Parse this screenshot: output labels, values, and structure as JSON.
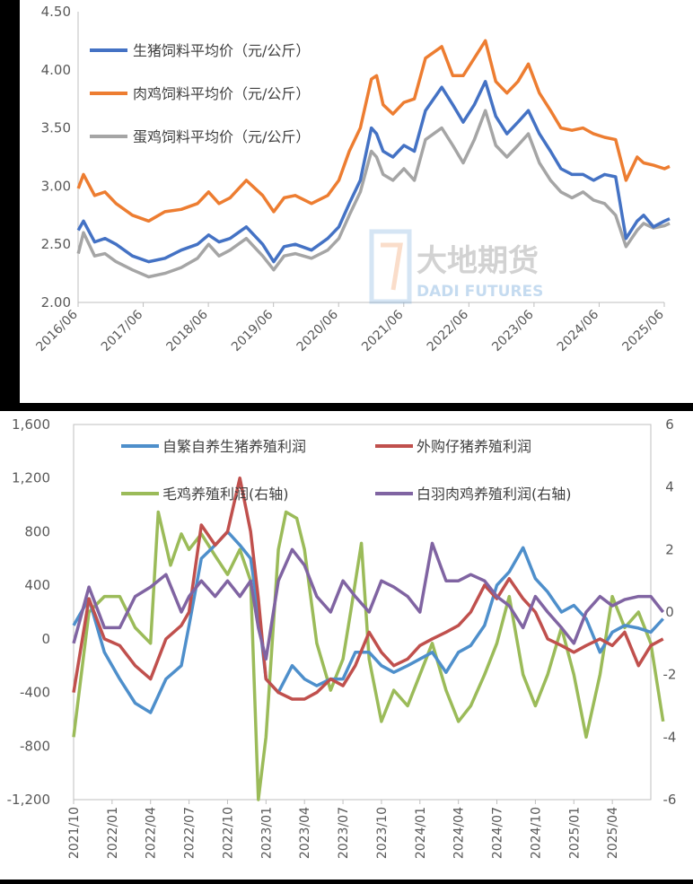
{
  "chart_data": [
    {
      "type": "line",
      "title": "",
      "xlabel": "",
      "ylabel": "",
      "ylim": [
        2.0,
        4.5
      ],
      "yticks": [
        "2.00",
        "2.50",
        "3.00",
        "3.50",
        "4.00",
        "4.50"
      ],
      "x_ticks": [
        "2016/06",
        "2017/06",
        "2018/06",
        "2019/06",
        "2020/06",
        "2021/06",
        "2022/06",
        "2023/06",
        "2024/06",
        "2025/06"
      ],
      "x_range": [
        "2016/06",
        "2025/06"
      ],
      "grid": false,
      "legend_position": "top-left",
      "watermark": {
        "cn": "大地期货",
        "en": "DADI FUTURES"
      },
      "series": [
        {
          "name": "生猪饲料平均价（元/公斤）",
          "color": "#4472C4",
          "x": [
            2016.42,
            2016.5,
            2016.67,
            2016.83,
            2017.0,
            2017.25,
            2017.5,
            2017.75,
            2018.0,
            2018.25,
            2018.42,
            2018.58,
            2018.75,
            2019.0,
            2019.25,
            2019.42,
            2019.58,
            2019.75,
            2020.0,
            2020.25,
            2020.42,
            2020.58,
            2020.75,
            2020.92,
            2021.0,
            2021.1,
            2021.25,
            2021.42,
            2021.58,
            2021.75,
            2022.0,
            2022.17,
            2022.33,
            2022.5,
            2022.67,
            2022.83,
            2023.0,
            2023.17,
            2023.33,
            2023.5,
            2023.67,
            2023.83,
            2024.0,
            2024.17,
            2024.33,
            2024.5,
            2024.67,
            2024.83,
            2025.0,
            2025.1,
            2025.25,
            2025.42,
            2025.5
          ],
          "values": [
            2.62,
            2.7,
            2.52,
            2.55,
            2.5,
            2.4,
            2.35,
            2.38,
            2.45,
            2.5,
            2.58,
            2.52,
            2.55,
            2.65,
            2.5,
            2.35,
            2.48,
            2.5,
            2.45,
            2.55,
            2.65,
            2.85,
            3.05,
            3.5,
            3.45,
            3.3,
            3.25,
            3.35,
            3.3,
            3.65,
            3.85,
            3.7,
            3.55,
            3.7,
            3.9,
            3.6,
            3.45,
            3.55,
            3.65,
            3.45,
            3.3,
            3.15,
            3.1,
            3.1,
            3.05,
            3.1,
            3.08,
            2.55,
            2.7,
            2.75,
            2.65,
            2.7,
            2.72
          ]
        },
        {
          "name": "肉鸡饲料平均价（元/公斤）",
          "color": "#ED7D31",
          "x": [
            2016.42,
            2016.5,
            2016.67,
            2016.83,
            2017.0,
            2017.25,
            2017.5,
            2017.75,
            2018.0,
            2018.25,
            2018.42,
            2018.58,
            2018.75,
            2019.0,
            2019.25,
            2019.42,
            2019.58,
            2019.75,
            2020.0,
            2020.25,
            2020.42,
            2020.58,
            2020.75,
            2020.92,
            2021.0,
            2021.1,
            2021.25,
            2021.42,
            2021.58,
            2021.75,
            2022.0,
            2022.17,
            2022.33,
            2022.5,
            2022.67,
            2022.83,
            2023.0,
            2023.17,
            2023.33,
            2023.5,
            2023.67,
            2023.83,
            2024.0,
            2024.17,
            2024.33,
            2024.5,
            2024.67,
            2024.83,
            2025.0,
            2025.1,
            2025.25,
            2025.42,
            2025.5
          ],
          "values": [
            2.98,
            3.1,
            2.92,
            2.95,
            2.85,
            2.75,
            2.7,
            2.78,
            2.8,
            2.85,
            2.95,
            2.85,
            2.9,
            3.05,
            2.92,
            2.78,
            2.9,
            2.92,
            2.85,
            2.92,
            3.05,
            3.3,
            3.5,
            3.92,
            3.95,
            3.7,
            3.62,
            3.72,
            3.75,
            4.1,
            4.2,
            3.95,
            3.95,
            4.1,
            4.25,
            3.9,
            3.8,
            3.9,
            4.05,
            3.8,
            3.65,
            3.5,
            3.48,
            3.5,
            3.45,
            3.42,
            3.4,
            3.05,
            3.25,
            3.2,
            3.18,
            3.15,
            3.17
          ]
        },
        {
          "name": "蛋鸡饲料平均价（元/公斤）",
          "color": "#A5A5A5",
          "x": [
            2016.42,
            2016.5,
            2016.67,
            2016.83,
            2017.0,
            2017.25,
            2017.5,
            2017.75,
            2018.0,
            2018.25,
            2018.42,
            2018.58,
            2018.75,
            2019.0,
            2019.25,
            2019.42,
            2019.58,
            2019.75,
            2020.0,
            2020.25,
            2020.42,
            2020.58,
            2020.75,
            2020.92,
            2021.0,
            2021.1,
            2021.25,
            2021.42,
            2021.58,
            2021.75,
            2022.0,
            2022.17,
            2022.33,
            2022.5,
            2022.67,
            2022.83,
            2023.0,
            2023.17,
            2023.33,
            2023.5,
            2023.67,
            2023.83,
            2024.0,
            2024.17,
            2024.33,
            2024.5,
            2024.67,
            2024.83,
            2025.0,
            2025.1,
            2025.25,
            2025.42,
            2025.5
          ],
          "values": [
            2.42,
            2.6,
            2.4,
            2.42,
            2.35,
            2.28,
            2.22,
            2.25,
            2.3,
            2.38,
            2.5,
            2.4,
            2.45,
            2.55,
            2.4,
            2.28,
            2.4,
            2.42,
            2.38,
            2.45,
            2.55,
            2.75,
            2.95,
            3.3,
            3.25,
            3.1,
            3.05,
            3.15,
            3.05,
            3.4,
            3.5,
            3.35,
            3.2,
            3.4,
            3.65,
            3.35,
            3.25,
            3.35,
            3.45,
            3.2,
            3.05,
            2.95,
            2.9,
            2.95,
            2.88,
            2.85,
            2.75,
            2.48,
            2.62,
            2.68,
            2.64,
            2.66,
            2.68
          ]
        }
      ]
    },
    {
      "type": "line",
      "title": "",
      "xlabel": "",
      "ylabel": "",
      "ylim": [
        -1200,
        1600
      ],
      "yticks": [
        "-1,200",
        "-800",
        "-400",
        "0",
        "400",
        "800",
        "1,200",
        "1,600"
      ],
      "y2lim": [
        -6,
        6
      ],
      "y2ticks": [
        "-6",
        "-4",
        "-2",
        "0",
        "2",
        "4",
        "6"
      ],
      "x_ticks": [
        "2021/10",
        "2022/01",
        "2022/04",
        "2022/07",
        "2022/10",
        "2023/01",
        "2023/04",
        "2023/07",
        "2023/10",
        "2024/01",
        "2024/04",
        "2024/07",
        "2024/10",
        "2025/01",
        "2025/04"
      ],
      "x_range": [
        "2021/10",
        "2025/07"
      ],
      "grid": false,
      "legend_position": "top",
      "series": [
        {
          "name": "自繁自养生猪养殖利润",
          "axis": "left",
          "color": "#4E8FCB",
          "x": [
            2021.75,
            2021.85,
            2021.95,
            2022.05,
            2022.15,
            2022.25,
            2022.35,
            2022.45,
            2022.5,
            2022.58,
            2022.67,
            2022.75,
            2022.83,
            2022.9,
            2022.95,
            2023.0,
            2023.08,
            2023.17,
            2023.25,
            2023.33,
            2023.42,
            2023.5,
            2023.58,
            2023.67,
            2023.75,
            2023.83,
            2023.92,
            2024.0,
            2024.08,
            2024.17,
            2024.25,
            2024.33,
            2024.42,
            2024.5,
            2024.58,
            2024.67,
            2024.75,
            2024.83,
            2024.92,
            2025.0,
            2025.08,
            2025.17,
            2025.25,
            2025.33,
            2025.42,
            2025.5,
            2025.58
          ],
          "values": [
            100,
            300,
            -100,
            -300,
            -480,
            -550,
            -300,
            -200,
            100,
            600,
            700,
            800,
            700,
            600,
            200,
            -300,
            -400,
            -200,
            -300,
            -350,
            -300,
            -300,
            -100,
            -100,
            -200,
            -250,
            -200,
            -150,
            -100,
            -250,
            -100,
            -50,
            100,
            400,
            500,
            680,
            450,
            350,
            200,
            250,
            150,
            -100,
            50,
            100,
            80,
            50,
            150
          ]
        },
        {
          "name": "外购仔猪养殖利润",
          "axis": "left",
          "color": "#C0504D",
          "x": [
            2021.75,
            2021.85,
            2021.95,
            2022.05,
            2022.15,
            2022.25,
            2022.35,
            2022.45,
            2022.5,
            2022.58,
            2022.67,
            2022.75,
            2022.83,
            2022.9,
            2022.95,
            2023.0,
            2023.08,
            2023.17,
            2023.25,
            2023.33,
            2023.42,
            2023.5,
            2023.58,
            2023.67,
            2023.75,
            2023.83,
            2023.92,
            2024.0,
            2024.08,
            2024.17,
            2024.25,
            2024.33,
            2024.42,
            2024.5,
            2024.58,
            2024.67,
            2024.75,
            2024.83,
            2024.92,
            2025.0,
            2025.08,
            2025.17,
            2025.25,
            2025.33,
            2025.42,
            2025.5,
            2025.58
          ],
          "values": [
            -400,
            300,
            0,
            -50,
            -200,
            -300,
            0,
            100,
            200,
            850,
            700,
            800,
            1200,
            800,
            300,
            -300,
            -400,
            -450,
            -450,
            -400,
            -300,
            -350,
            -200,
            50,
            -100,
            -200,
            -150,
            -50,
            0,
            50,
            100,
            200,
            400,
            300,
            450,
            300,
            200,
            0,
            -50,
            -100,
            -50,
            0,
            -50,
            50,
            -200,
            -50,
            0
          ]
        },
        {
          "name": "毛鸡养殖利润(右轴)",
          "axis": "right",
          "color": "#9BBB59",
          "x": [
            2021.75,
            2021.85,
            2021.95,
            2022.05,
            2022.15,
            2022.25,
            2022.3,
            2022.38,
            2022.45,
            2022.5,
            2022.58,
            2022.67,
            2022.75,
            2022.83,
            2022.9,
            2022.95,
            2023.0,
            2023.08,
            2023.13,
            2023.2,
            2023.25,
            2023.33,
            2023.42,
            2023.5,
            2023.55,
            2023.62,
            2023.67,
            2023.75,
            2023.83,
            2023.92,
            2024.0,
            2024.08,
            2024.17,
            2024.25,
            2024.33,
            2024.42,
            2024.5,
            2024.58,
            2024.67,
            2024.75,
            2024.83,
            2024.92,
            2025.0,
            2025.08,
            2025.17,
            2025.25,
            2025.33,
            2025.42,
            2025.5,
            2025.58
          ],
          "values": [
            -4,
            0,
            0.5,
            0.5,
            -0.5,
            -1,
            3.2,
            1.5,
            2.5,
            2,
            2.5,
            1.8,
            1.2,
            2,
            1,
            -6,
            -4,
            2,
            3.2,
            3,
            2,
            -1,
            -2.5,
            -1.5,
            0,
            2.2,
            -1.5,
            -3.5,
            -2.5,
            -3,
            -2,
            -1,
            -2.5,
            -3.5,
            -3,
            -2,
            -1,
            0.5,
            -2,
            -3,
            -2,
            -0.5,
            -2,
            -4,
            -2,
            0.5,
            -0.5,
            0,
            -1,
            -3.5
          ]
        },
        {
          "name": "白羽肉鸡养殖利润(右轴)",
          "axis": "right",
          "color": "#8064A2",
          "x": [
            2021.75,
            2021.85,
            2021.95,
            2022.05,
            2022.15,
            2022.25,
            2022.35,
            2022.45,
            2022.5,
            2022.58,
            2022.67,
            2022.75,
            2022.83,
            2022.9,
            2022.95,
            2023.0,
            2023.08,
            2023.17,
            2023.25,
            2023.33,
            2023.42,
            2023.5,
            2023.58,
            2023.67,
            2023.75,
            2023.83,
            2023.92,
            2024.0,
            2024.08,
            2024.17,
            2024.25,
            2024.33,
            2024.42,
            2024.5,
            2024.58,
            2024.67,
            2024.75,
            2024.83,
            2024.92,
            2025.0,
            2025.08,
            2025.17,
            2025.25,
            2025.33,
            2025.42,
            2025.5,
            2025.58
          ],
          "values": [
            -1,
            0.8,
            -0.5,
            -0.5,
            0.5,
            0.8,
            1.2,
            0,
            0.5,
            1,
            0.5,
            1,
            0.5,
            1,
            -0.5,
            -1.5,
            1,
            2,
            1.5,
            0.5,
            0,
            1,
            0.5,
            0,
            1,
            0.8,
            0.5,
            0,
            2.2,
            1,
            1,
            1.2,
            1,
            0.5,
            0.2,
            -0.5,
            0.5,
            0,
            -0.5,
            -1,
            0,
            0.5,
            0.2,
            0.4,
            0.5,
            0.5,
            0
          ]
        }
      ]
    }
  ]
}
